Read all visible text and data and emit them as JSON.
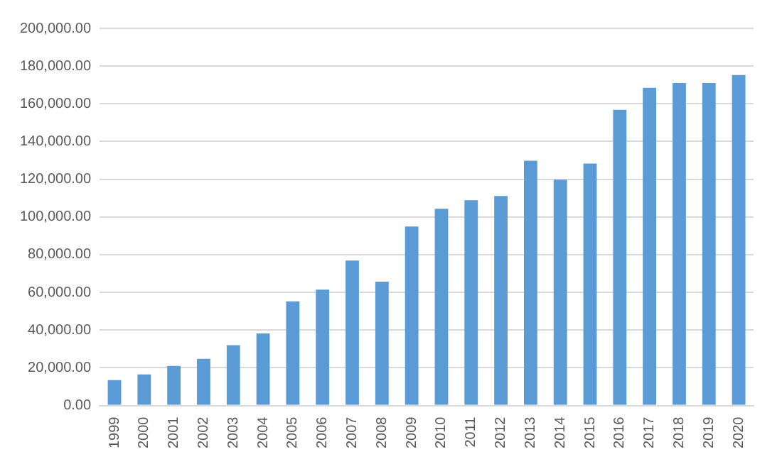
{
  "chart_data": {
    "type": "bar",
    "categories": [
      "1999",
      "2000",
      "2001",
      "2002",
      "2003",
      "2004",
      "2005",
      "2006",
      "2007",
      "2008",
      "2009",
      "2010",
      "2011",
      "2012",
      "2013",
      "2014",
      "2015",
      "2016",
      "2017",
      "2018",
      "2019",
      "2020"
    ],
    "values": [
      13500,
      16500,
      21000,
      24700,
      32000,
      38200,
      55200,
      61400,
      76900,
      65700,
      94900,
      104300,
      108800,
      111100,
      129800,
      119800,
      128300,
      156800,
      168500,
      171000,
      171000,
      175300
    ],
    "color": "#5b9bd5",
    "ylim": [
      0,
      200000
    ],
    "yticks": [
      {
        "value": 0,
        "label": "0.00"
      },
      {
        "value": 20000,
        "label": "20,000.00"
      },
      {
        "value": 40000,
        "label": "40,000.00"
      },
      {
        "value": 60000,
        "label": "60,000.00"
      },
      {
        "value": 80000,
        "label": "80,000.00"
      },
      {
        "value": 100000,
        "label": "100,000.00"
      },
      {
        "value": 120000,
        "label": "120,000.00"
      },
      {
        "value": 140000,
        "label": "140,000.00"
      },
      {
        "value": 160000,
        "label": "160,000.00"
      },
      {
        "value": 180000,
        "label": "180,000.00"
      },
      {
        "value": 200000,
        "label": "200,000.00"
      }
    ],
    "grid": "y",
    "legend": false
  }
}
